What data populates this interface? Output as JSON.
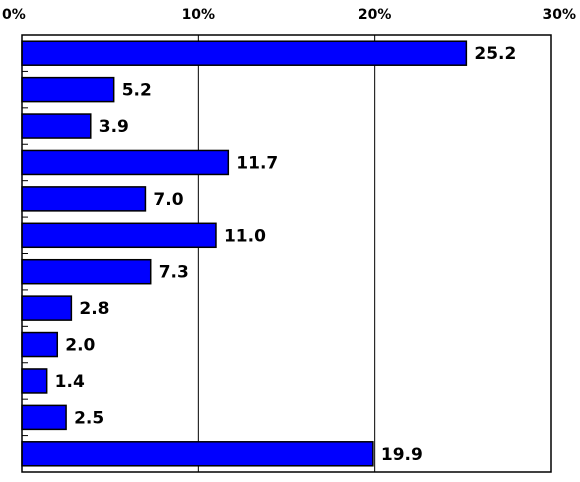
{
  "chart_data": {
    "type": "bar",
    "orientation": "horizontal",
    "categories": [
      null,
      null,
      null,
      null,
      null,
      null,
      null,
      null,
      null,
      null,
      null,
      null
    ],
    "values": [
      25.2,
      5.2,
      3.9,
      11.7,
      7.0,
      11.0,
      7.3,
      2.8,
      2.0,
      1.4,
      2.5,
      19.9
    ],
    "value_labels": [
      "25.2",
      "5.2",
      "3.9",
      "11.7",
      "7.0",
      "11.0",
      "7.3",
      "2.8",
      "2.0",
      "1.4",
      "2.5",
      "19.9"
    ],
    "color": "#0000ff",
    "xlim": [
      0,
      30
    ],
    "xticks": [
      {
        "value": 0,
        "label": "0%"
      },
      {
        "value": 10,
        "label": "10%"
      },
      {
        "value": 20,
        "label": "20%"
      },
      {
        "value": 30,
        "label": "30%"
      }
    ],
    "grid": true
  }
}
